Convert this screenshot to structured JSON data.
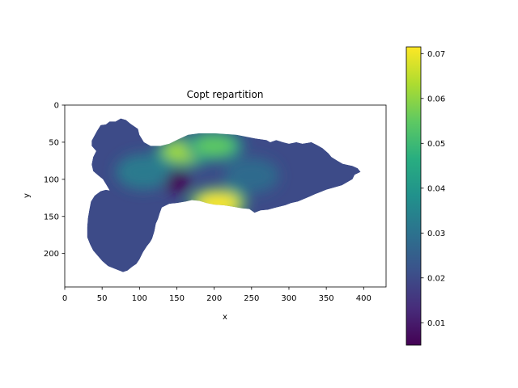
{
  "chart_data": {
    "type": "heatmap",
    "title": "Copt repartition",
    "xlabel": "x",
    "ylabel": "y",
    "xlim": [
      0,
      430
    ],
    "ylim": [
      245,
      0
    ],
    "y_inverted": true,
    "x_ticks": [
      "0",
      "50",
      "100",
      "150",
      "200",
      "250",
      "300",
      "350",
      "400"
    ],
    "y_ticks": [
      "0",
      "50",
      "100",
      "150",
      "200"
    ],
    "colormap": "viridis",
    "colorbar": {
      "range": [
        0.005,
        0.0715
      ],
      "ticks": [
        "0.01",
        "0.02",
        "0.03",
        "0.04",
        "0.05",
        "0.06",
        "0.07"
      ]
    },
    "background_value": 0.02,
    "field_features": [
      {
        "kind": "high",
        "x": 160,
        "y": 63,
        "value": 0.062
      },
      {
        "kind": "high",
        "x": 200,
        "y": 55,
        "value": 0.055
      },
      {
        "kind": "high",
        "x": 205,
        "y": 132,
        "value": 0.0715
      },
      {
        "kind": "low",
        "x": 150,
        "y": 103,
        "value": 0.005
      },
      {
        "kind": "moderate",
        "x": 105,
        "y": 90,
        "value": 0.032
      },
      {
        "kind": "moderate",
        "x": 250,
        "y": 95,
        "value": 0.028
      }
    ],
    "domain_outline": [
      [
        36,
        48
      ],
      [
        43,
        35
      ],
      [
        48,
        27
      ],
      [
        55,
        26
      ],
      [
        60,
        22
      ],
      [
        68,
        22
      ],
      [
        75,
        18
      ],
      [
        82,
        20
      ],
      [
        88,
        25
      ],
      [
        98,
        32
      ],
      [
        100,
        40
      ],
      [
        106,
        50
      ],
      [
        115,
        55
      ],
      [
        128,
        55
      ],
      [
        140,
        52
      ],
      [
        152,
        46
      ],
      [
        165,
        40
      ],
      [
        180,
        38
      ],
      [
        200,
        38
      ],
      [
        230,
        40
      ],
      [
        255,
        45
      ],
      [
        270,
        47
      ],
      [
        275,
        50
      ],
      [
        283,
        47
      ],
      [
        292,
        50
      ],
      [
        300,
        52
      ],
      [
        310,
        50
      ],
      [
        318,
        52
      ],
      [
        330,
        50
      ],
      [
        338,
        54
      ],
      [
        345,
        58
      ],
      [
        353,
        65
      ],
      [
        357,
        70
      ],
      [
        365,
        75
      ],
      [
        372,
        79
      ],
      [
        385,
        82
      ],
      [
        392,
        85
      ],
      [
        396,
        90
      ],
      [
        388,
        94
      ],
      [
        385,
        100
      ],
      [
        378,
        104
      ],
      [
        371,
        108
      ],
      [
        361,
        111
      ],
      [
        350,
        114
      ],
      [
        343,
        117
      ],
      [
        335,
        120
      ],
      [
        324,
        125
      ],
      [
        312,
        130
      ],
      [
        303,
        132
      ],
      [
        295,
        135
      ],
      [
        283,
        138
      ],
      [
        272,
        141
      ],
      [
        262,
        142
      ],
      [
        254,
        145
      ],
      [
        247,
        140
      ],
      [
        237,
        139
      ],
      [
        225,
        137
      ],
      [
        213,
        135
      ],
      [
        200,
        134
      ],
      [
        190,
        132
      ],
      [
        180,
        129
      ],
      [
        170,
        128
      ],
      [
        162,
        130
      ],
      [
        150,
        132
      ],
      [
        140,
        133
      ],
      [
        130,
        138
      ],
      [
        127,
        146
      ],
      [
        125,
        153
      ],
      [
        122,
        160
      ],
      [
        120,
        170
      ],
      [
        117,
        180
      ],
      [
        114,
        185
      ],
      [
        110,
        190
      ],
      [
        105,
        198
      ],
      [
        100,
        208
      ],
      [
        96,
        214
      ],
      [
        90,
        218
      ],
      [
        84,
        223
      ],
      [
        78,
        225
      ],
      [
        68,
        221
      ],
      [
        58,
        217
      ],
      [
        50,
        210
      ],
      [
        44,
        203
      ],
      [
        38,
        196
      ],
      [
        34,
        188
      ],
      [
        30,
        178
      ],
      [
        30,
        165
      ],
      [
        31,
        152
      ],
      [
        33,
        140
      ],
      [
        35,
        130
      ],
      [
        40,
        122
      ],
      [
        48,
        116
      ],
      [
        55,
        114
      ],
      [
        60,
        115
      ],
      [
        56,
        108
      ],
      [
        51,
        100
      ],
      [
        45,
        95
      ],
      [
        38,
        89
      ],
      [
        36,
        80
      ],
      [
        38,
        70
      ],
      [
        42,
        62
      ],
      [
        36,
        55
      ]
    ]
  }
}
